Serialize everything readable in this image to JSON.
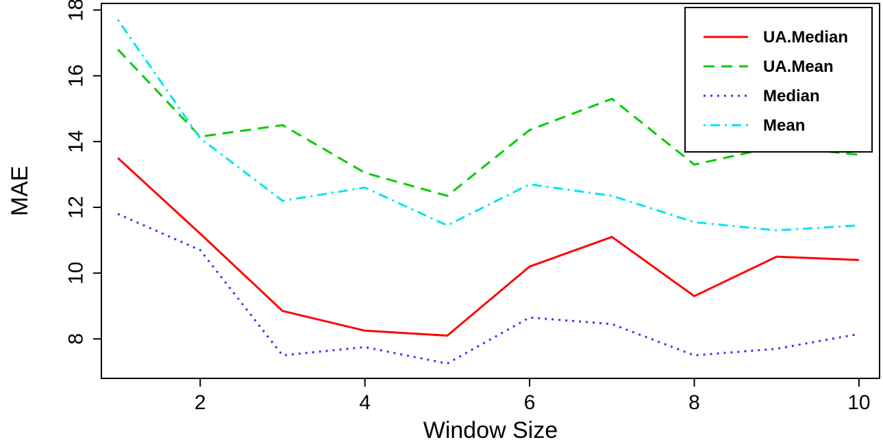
{
  "chart_data": {
    "type": "line",
    "title": "",
    "xlabel": "Window Size",
    "ylabel": "MAE",
    "xlim": [
      0.8,
      10.25
    ],
    "ylim": [
      6.8,
      18.2
    ],
    "xticks": [
      2,
      4,
      6,
      8,
      10
    ],
    "yticks": [
      8,
      10,
      12,
      14,
      16,
      18
    ],
    "grid": false,
    "legend_position": "top-right",
    "x": [
      1,
      2,
      3,
      4,
      5,
      6,
      7,
      8,
      9,
      10
    ],
    "series": [
      {
        "name": "UA.Median",
        "color": "#ff0000",
        "dash": "solid",
        "values": [
          13.5,
          11.2,
          8.85,
          8.25,
          8.1,
          10.2,
          11.1,
          9.3,
          10.5,
          10.4
        ]
      },
      {
        "name": "UA.Mean",
        "color": "#00cc00",
        "dash": "dashed",
        "values": [
          16.8,
          14.15,
          14.5,
          13.05,
          12.35,
          14.35,
          15.3,
          13.3,
          13.85,
          13.6
        ]
      },
      {
        "name": "Median",
        "color": "#3333ff",
        "dash": "dotted",
        "values": [
          11.8,
          10.7,
          7.5,
          7.75,
          7.25,
          8.65,
          8.45,
          7.5,
          7.7,
          8.15
        ]
      },
      {
        "name": "Mean",
        "color": "#00e5ee",
        "dash": "dotdash",
        "values": [
          17.7,
          14.1,
          12.2,
          12.6,
          11.45,
          12.7,
          12.35,
          11.55,
          11.3,
          11.45
        ]
      }
    ]
  }
}
